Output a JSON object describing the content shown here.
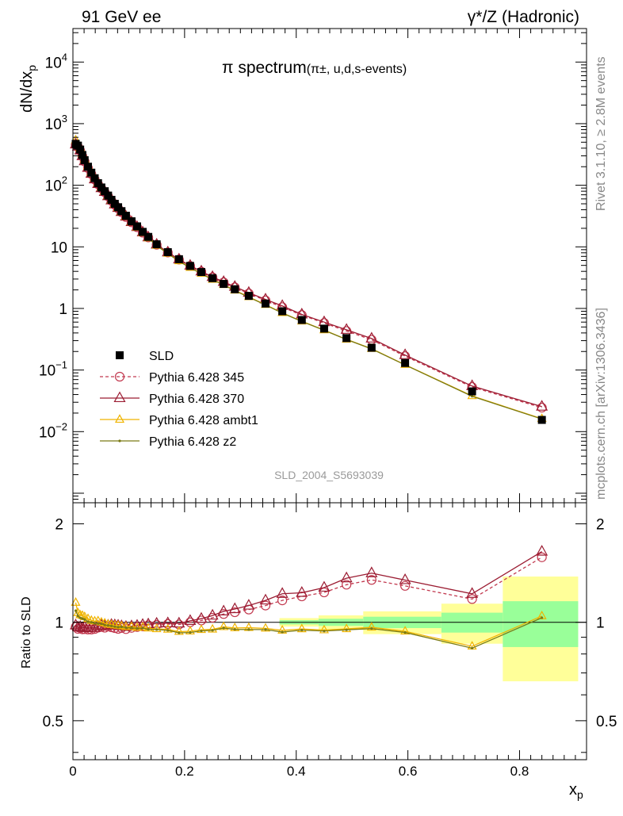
{
  "header": {
    "left": "91 GeV ee",
    "right": "γ*/Z (Hadronic)"
  },
  "side_text": {
    "top": "Rivet 3.1.10, ≥ 2.8M events",
    "bottom": "mcplots.cern.ch [arXiv:1306.3436]"
  },
  "watermark": "SLD_2004_S5693039",
  "chart_data": [
    {
      "type": "scatter",
      "title": "π spectrum",
      "subtitle": "(π±, u,d,s-events)",
      "ylabel": "dN/dx_p",
      "ylabel_main": "dN/dx",
      "ylabel_sub": "p",
      "yscale": "log",
      "xlim": [
        0,
        0.92
      ],
      "ylim": [
        0.0007,
        35000
      ],
      "x_tick_labels": [
        "0",
        "0.2",
        "0.4",
        "0.6",
        "0.8"
      ],
      "y_tick_labels": [
        {
          "value": 0.01,
          "base": "10",
          "exp": "−2"
        },
        {
          "value": 0.1,
          "base": "10",
          "exp": "−1"
        },
        {
          "value": 1,
          "base": "1",
          "exp": ""
        },
        {
          "value": 10,
          "base": "10",
          "exp": ""
        },
        {
          "value": 100,
          "base": "10",
          "exp": "2"
        },
        {
          "value": 1000,
          "base": "10",
          "exp": "3"
        },
        {
          "value": 10000,
          "base": "10",
          "exp": "4"
        }
      ],
      "legend_position": "lower-left",
      "x": [
        0.005,
        0.009,
        0.013,
        0.017,
        0.021,
        0.027,
        0.033,
        0.039,
        0.045,
        0.051,
        0.057,
        0.063,
        0.069,
        0.075,
        0.081,
        0.087,
        0.095,
        0.105,
        0.115,
        0.125,
        0.135,
        0.15,
        0.17,
        0.19,
        0.21,
        0.23,
        0.25,
        0.27,
        0.29,
        0.315,
        0.345,
        0.375,
        0.41,
        0.45,
        0.49,
        0.535,
        0.595,
        0.715,
        0.84
      ],
      "series": [
        {
          "name": "SLD",
          "color": "#000000",
          "marker": "square",
          "values": [
            470,
            440,
            380,
            310,
            255,
            200,
            160,
            130,
            108,
            92,
            80,
            68,
            58,
            50,
            44,
            38,
            32,
            26,
            21.5,
            17.5,
            14.5,
            11,
            8.2,
            6.3,
            4.9,
            3.9,
            3.1,
            2.5,
            2.05,
            1.6,
            1.2,
            0.9,
            0.65,
            0.47,
            0.33,
            0.23,
            0.13,
            0.045,
            0.0155
          ]
        },
        {
          "name": "Pythia 6.428 345",
          "color": "#c2394f",
          "marker": "circle-open",
          "line": "dashed",
          "values": [
            455,
            420,
            365,
            295,
            243,
            190,
            152,
            124,
            104,
            89,
            77,
            66,
            56,
            48,
            42,
            36.5,
            30.5,
            25,
            20.8,
            17,
            14.2,
            10.8,
            8.1,
            6.2,
            4.9,
            3.95,
            3.2,
            2.65,
            2.2,
            1.75,
            1.35,
            1.05,
            0.78,
            0.58,
            0.43,
            0.31,
            0.168,
            0.053,
            0.0245
          ]
        },
        {
          "name": "Pythia 6.428 370",
          "color": "#9b1c32",
          "marker": "triangle-open",
          "line": "solid",
          "values": [
            460,
            425,
            368,
            298,
            246,
            192,
            154,
            125,
            105,
            90,
            78,
            66.5,
            57,
            49,
            43,
            37,
            31,
            25.3,
            21,
            17.2,
            14.3,
            10.9,
            8.15,
            6.25,
            4.95,
            4.0,
            3.25,
            2.7,
            2.25,
            1.8,
            1.4,
            1.1,
            0.8,
            0.6,
            0.45,
            0.325,
            0.175,
            0.055,
            0.0255
          ]
        },
        {
          "name": "Pythia 6.428 ambt1",
          "color": "#f0b400",
          "marker": "triangle-open",
          "line": "solid",
          "values": [
            540,
            470,
            400,
            325,
            265,
            205,
            162,
            131,
            109,
            92,
            79.5,
            67,
            57,
            49,
            43,
            37,
            31,
            25.2,
            20.7,
            16.9,
            13.9,
            10.5,
            7.8,
            5.9,
            4.6,
            3.7,
            2.95,
            2.42,
            1.97,
            1.54,
            1.15,
            0.85,
            0.62,
            0.445,
            0.315,
            0.222,
            0.122,
            0.038,
            0.0162
          ]
        },
        {
          "name": "Pythia 6.428 z2",
          "color": "#7a7a14",
          "marker": "dot",
          "line": "solid",
          "values": [
            510,
            460,
            392,
            318,
            260,
            201,
            160,
            129,
            107,
            91,
            78.5,
            66.5,
            56.5,
            48.5,
            42.5,
            36.8,
            30.8,
            25,
            20.6,
            16.8,
            13.8,
            10.45,
            7.75,
            5.85,
            4.56,
            3.67,
            2.93,
            2.4,
            1.95,
            1.52,
            1.14,
            0.84,
            0.615,
            0.442,
            0.313,
            0.22,
            0.121,
            0.0375,
            0.016
          ]
        }
      ]
    },
    {
      "type": "line",
      "ylabel": "Ratio to SLD",
      "xlabel": "x_p",
      "xlabel_main": "x",
      "xlabel_sub": "p",
      "xlim": [
        0,
        0.92
      ],
      "ylim": [
        0.38,
        2.32
      ],
      "y_tick_labels": [
        "0.5",
        "1",
        "2"
      ],
      "y_ticks": [
        0.5,
        1,
        2
      ],
      "bands": [
        {
          "x0": 0.37,
          "x1": 0.44,
          "stat_lo": 0.985,
          "stat_hi": 1.015,
          "tot_lo": 0.97,
          "tot_hi": 1.03
        },
        {
          "x0": 0.44,
          "x1": 0.52,
          "stat_lo": 0.975,
          "stat_hi": 1.025,
          "tot_lo": 0.95,
          "tot_hi": 1.05
        },
        {
          "x0": 0.52,
          "x1": 0.66,
          "stat_lo": 0.96,
          "stat_hi": 1.04,
          "tot_lo": 0.92,
          "tot_hi": 1.08
        },
        {
          "x0": 0.66,
          "x1": 0.77,
          "stat_lo": 0.93,
          "stat_hi": 1.07,
          "tot_lo": 0.86,
          "tot_hi": 1.14
        },
        {
          "x0": 0.77,
          "x1": 0.905,
          "stat_lo": 0.84,
          "stat_hi": 1.16,
          "tot_lo": 0.66,
          "tot_hi": 1.38
        }
      ]
    }
  ]
}
